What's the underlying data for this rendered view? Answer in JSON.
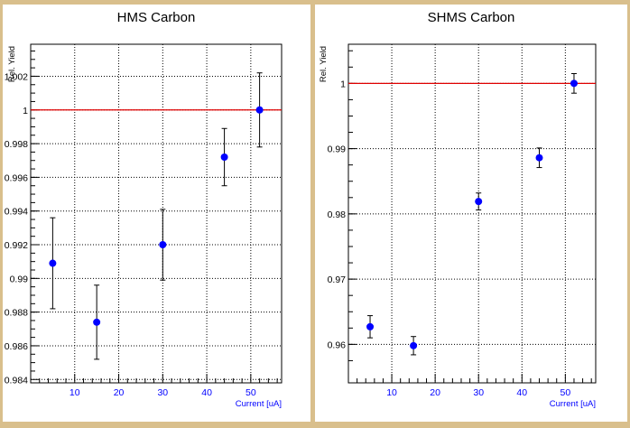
{
  "chart_data": [
    {
      "type": "scatter",
      "title": "HMS Carbon",
      "xlabel": "Current [uA]",
      "ylabel": "Rel. Yield",
      "xlim": [
        0,
        57
      ],
      "ylim": [
        0.9838,
        1.0039
      ],
      "xticks": [
        10,
        20,
        30,
        40,
        50
      ],
      "xtick_labels": [
        "10",
        "20",
        "30",
        "40",
        "50"
      ],
      "yticks": [
        0.984,
        0.986,
        0.988,
        0.99,
        0.992,
        0.994,
        0.996,
        0.998,
        1,
        1.002
      ],
      "ytick_labels": [
        "0.984",
        "0.986",
        "0.988",
        "0.99",
        "0.992",
        "0.994",
        "0.996",
        "0.998",
        "1",
        "1.002"
      ],
      "reference_line": 1,
      "grid": true,
      "series": [
        {
          "x": [
            5,
            15,
            30,
            44,
            52
          ],
          "y": [
            0.9909,
            0.9874,
            0.992,
            0.9972,
            1.0
          ],
          "err": [
            0.0027,
            0.0022,
            0.0021,
            0.0017,
            0.0022
          ]
        }
      ]
    },
    {
      "type": "scatter",
      "title": "SHMS Carbon",
      "xlabel": "Current [uA]",
      "ylabel": "Rel. Yield",
      "xlim": [
        0,
        57
      ],
      "ylim": [
        0.9541,
        1.006
      ],
      "xticks": [
        10,
        20,
        30,
        40,
        50
      ],
      "xtick_labels": [
        "10",
        "20",
        "30",
        "40",
        "50"
      ],
      "yticks": [
        0.96,
        0.97,
        0.98,
        0.99,
        1
      ],
      "ytick_labels": [
        "0.96",
        "0.97",
        "0.98",
        "0.99",
        "1"
      ],
      "reference_line": 1,
      "grid": true,
      "series": [
        {
          "x": [
            5,
            15,
            30,
            44,
            52
          ],
          "y": [
            0.9627,
            0.9598,
            0.9819,
            0.9886,
            1.0
          ],
          "err": [
            0.0017,
            0.0014,
            0.0013,
            0.0015,
            0.0015
          ]
        }
      ]
    }
  ]
}
